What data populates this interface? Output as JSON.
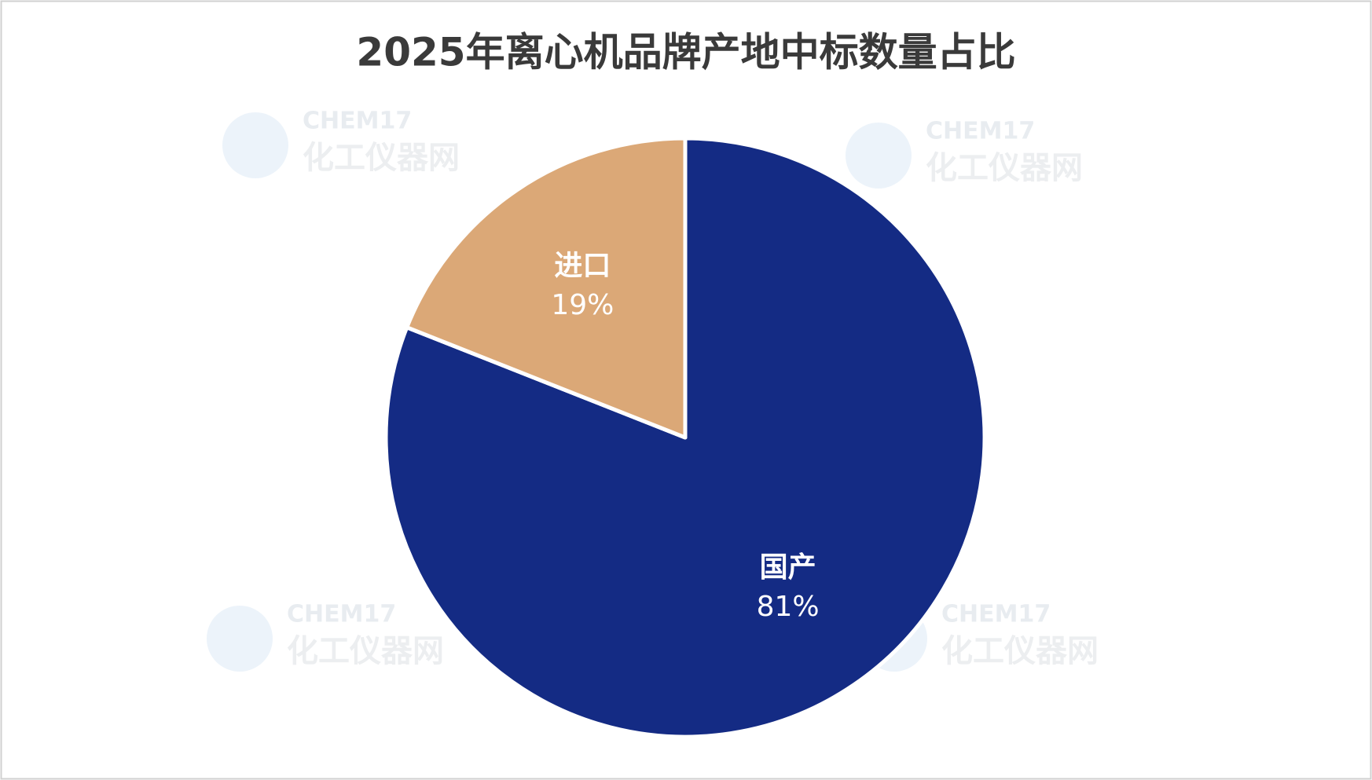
{
  "chart_data": {
    "type": "pie",
    "title": "2025年离心机品牌产地中标数量占比",
    "categories": [
      "国产",
      "进口"
    ],
    "values": [
      81,
      19
    ],
    "value_labels": [
      "81%",
      "19%"
    ],
    "colors": [
      "#142b84",
      "#dba877"
    ],
    "watermark": {
      "brand": "CHEM17",
      "name": "化工仪器网"
    }
  }
}
